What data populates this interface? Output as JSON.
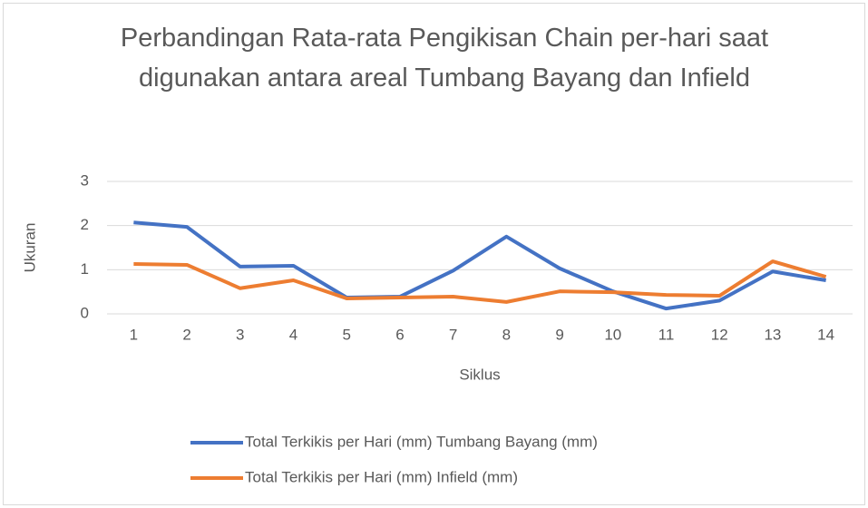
{
  "chart_data": {
    "type": "line",
    "title": "Perbandingan Rata-rata Pengikisan Chain per-hari saat digunakan antara areal Tumbang Bayang dan Infield",
    "x_label": "Siklus",
    "y_label": "Ukuran",
    "categories": [
      "1",
      "2",
      "3",
      "4",
      "5",
      "6",
      "7",
      "8",
      "9",
      "10",
      "11",
      "12",
      "13",
      "14"
    ],
    "series": [
      {
        "name": "Total Terkikis per Hari (mm) Tumbang Bayang (mm)",
        "color": "#4472c4",
        "values": [
          2.07,
          1.97,
          1.07,
          1.09,
          0.37,
          0.39,
          0.98,
          1.75,
          1.03,
          0.51,
          0.12,
          0.3,
          0.96,
          0.76
        ]
      },
      {
        "name": "Total Terkikis per Hari (mm) Infield (mm)",
        "color": "#ed7d31",
        "values": [
          1.13,
          1.11,
          0.58,
          0.76,
          0.35,
          0.37,
          0.39,
          0.27,
          0.51,
          0.49,
          0.43,
          0.41,
          1.19,
          0.84
        ]
      }
    ],
    "ylim": [
      0,
      3
    ],
    "yticks": [
      0,
      1,
      2,
      3
    ],
    "grid": true,
    "legend": "bottom"
  }
}
